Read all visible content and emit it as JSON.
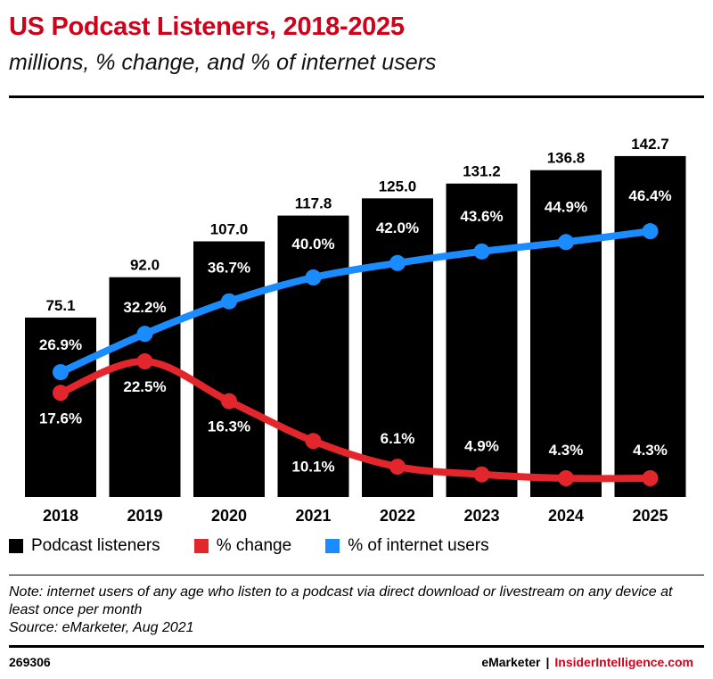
{
  "title": "US Podcast Listeners, 2018-2025",
  "subtitle": "millions, % change, and % of internet users",
  "chart_data": {
    "type": "bar",
    "categories": [
      "2018",
      "2019",
      "2020",
      "2021",
      "2022",
      "2023",
      "2024",
      "2025"
    ],
    "ylim": [
      0,
      155
    ],
    "series": [
      {
        "name": "Podcast listeners",
        "type": "bar",
        "color": "#000000",
        "values": [
          75.1,
          92.0,
          107.0,
          117.8,
          125.0,
          131.2,
          136.8,
          142.7
        ],
        "labels": [
          "75.1",
          "92.0",
          "107.0",
          "117.8",
          "125.0",
          "131.2",
          "136.8",
          "142.7"
        ]
      },
      {
        "name": "% change",
        "type": "line",
        "color": "#e3262c",
        "values": [
          17.6,
          22.5,
          16.3,
          10.1,
          6.1,
          4.9,
          4.3,
          4.3
        ],
        "labels": [
          "17.6%",
          "22.5%",
          "16.3%",
          "10.1%",
          "6.1%",
          "4.9%",
          "4.3%",
          "4.3%"
        ]
      },
      {
        "name": "% of internet users",
        "type": "line",
        "color": "#1a8cff",
        "values": [
          26.9,
          32.2,
          36.7,
          40.0,
          42.0,
          43.6,
          44.9,
          46.4
        ],
        "labels": [
          "26.9%",
          "32.2%",
          "36.7%",
          "40.0%",
          "42.0%",
          "43.6%",
          "44.9%",
          "46.4%"
        ]
      }
    ],
    "legend_position": "bottom-left",
    "grid": false
  },
  "legend": [
    {
      "label": "Podcast listeners",
      "color": "#000000"
    },
    {
      "label": "% change",
      "color": "#e3262c"
    },
    {
      "label": "% of internet users",
      "color": "#1a8cff"
    }
  ],
  "note": "Note: internet users of any age who listen to a podcast via direct download or livestream on any device at least once per month",
  "source": "Source: eMarketer, Aug 2021",
  "footer": {
    "chart_id": "269306",
    "brand_left": "eMarketer",
    "separator": "|",
    "brand_right": "InsiderIntelligence.com"
  }
}
